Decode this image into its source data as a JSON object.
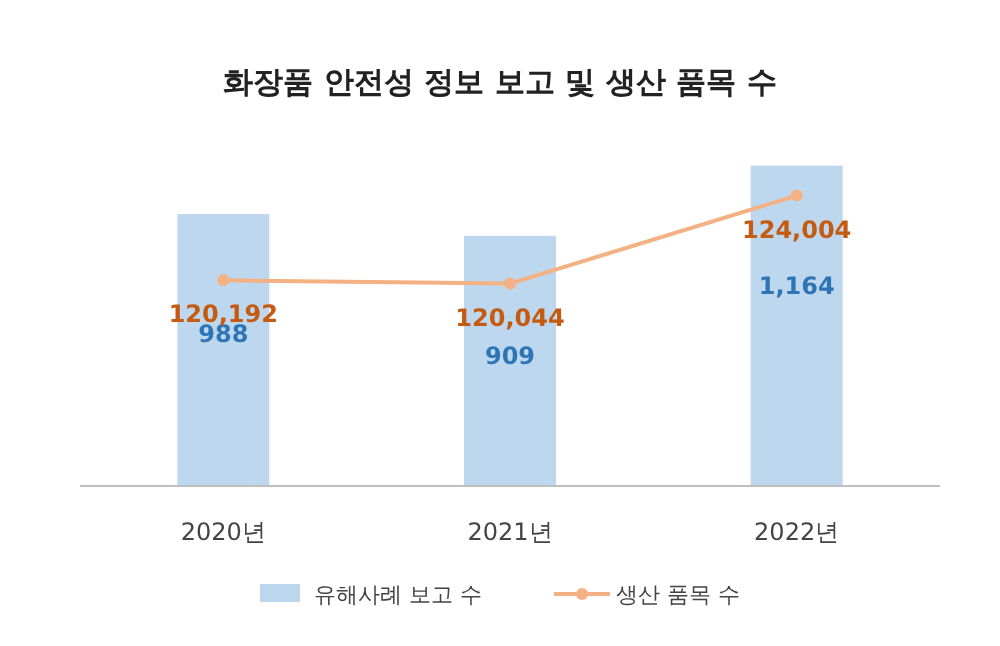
{
  "chart_data": {
    "type": "bar",
    "title": "화장품 안전성 정보 보고 및 생산 품목 수",
    "categories": [
      "2020년",
      "2021년",
      "2022년"
    ],
    "series": [
      {
        "name": "유해사례 보고 수",
        "color": "#bdd7ee",
        "values": [
          988,
          909,
          1164
        ],
        "value_labels": [
          "988",
          "909",
          "1,164"
        ]
      },
      {
        "name": "생산 품목 수",
        "type": "line",
        "axis": "y2",
        "color": "#f4b183",
        "marker": "circle",
        "values": [
          120192,
          120044,
          124004
        ],
        "value_labels": [
          "120,192",
          "120,044",
          "124,004"
        ]
      }
    ],
    "tick_labels": "x",
    "legend": "bottom"
  }
}
